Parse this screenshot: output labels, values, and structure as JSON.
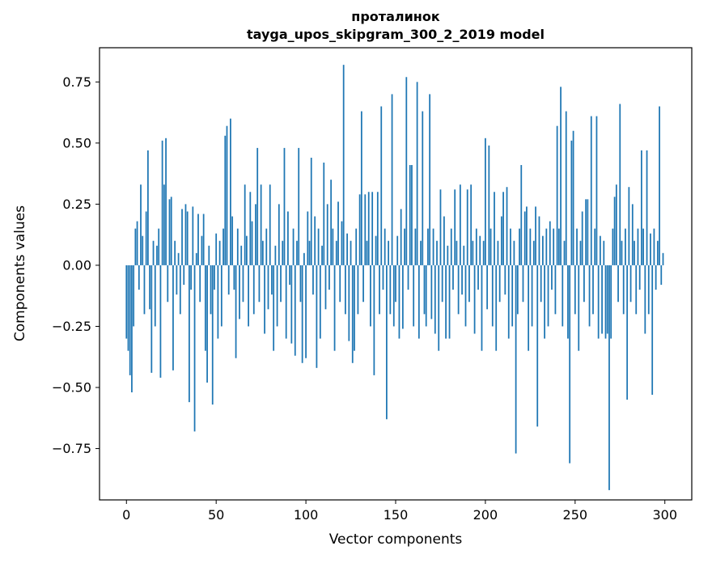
{
  "figure": {
    "background": "#ffffff"
  },
  "chart_data": {
    "type": "bar",
    "title_line1": "проталинок",
    "title_line2": "tayga_upos_skipgram_300_2_2019 model",
    "xlabel": "Vector components",
    "ylabel": "Components values",
    "bar_color": "#1f77b4",
    "axes_color": "#000000",
    "xlim": [
      -15,
      315
    ],
    "ylim": [
      -0.96,
      0.89
    ],
    "xticks": [
      0,
      50,
      100,
      150,
      200,
      250,
      300
    ],
    "yticks": [
      -0.75,
      -0.5,
      -0.25,
      0.0,
      0.25,
      0.5,
      0.75
    ],
    "grid": false,
    "legend": "none",
    "x_is_index": true,
    "n_components": 300,
    "values": [
      -0.3,
      -0.35,
      -0.45,
      -0.52,
      -0.25,
      0.15,
      0.18,
      -0.1,
      0.33,
      0.12,
      -0.2,
      0.22,
      0.47,
      -0.18,
      -0.44,
      0.1,
      -0.25,
      0.08,
      0.15,
      -0.46,
      0.51,
      0.33,
      0.52,
      -0.15,
      0.27,
      0.28,
      -0.43,
      0.1,
      -0.12,
      0.05,
      -0.2,
      0.23,
      -0.08,
      0.25,
      0.22,
      -0.56,
      -0.1,
      0.24,
      -0.68,
      0.05,
      0.21,
      -0.15,
      0.12,
      0.21,
      -0.35,
      -0.48,
      0.08,
      -0.2,
      -0.57,
      -0.1,
      0.13,
      -0.3,
      0.1,
      -0.25,
      0.15,
      0.53,
      0.57,
      -0.12,
      0.6,
      0.2,
      -0.1,
      -0.38,
      0.15,
      -0.22,
      0.08,
      -0.15,
      0.33,
      0.12,
      -0.25,
      0.3,
      0.18,
      -0.2,
      0.25,
      0.48,
      -0.15,
      0.33,
      0.1,
      -0.28,
      0.15,
      -0.18,
      0.33,
      -0.12,
      -0.35,
      0.08,
      -0.25,
      0.25,
      -0.15,
      0.1,
      0.48,
      -0.3,
      0.22,
      -0.08,
      -0.32,
      0.15,
      -0.37,
      0.1,
      0.48,
      -0.15,
      -0.4,
      0.05,
      -0.38,
      0.22,
      0.1,
      0.44,
      -0.12,
      0.2,
      -0.42,
      0.15,
      -0.3,
      0.08,
      0.42,
      -0.18,
      0.25,
      -0.1,
      0.35,
      0.15,
      -0.35,
      0.1,
      0.26,
      -0.15,
      0.18,
      0.82,
      -0.2,
      0.13,
      -0.31,
      0.1,
      -0.4,
      -0.35,
      0.15,
      -0.2,
      0.29,
      0.63,
      -0.15,
      0.29,
      0.1,
      0.3,
      -0.25,
      0.3,
      -0.45,
      0.12,
      0.3,
      -0.2,
      0.65,
      -0.1,
      0.15,
      -0.63,
      0.1,
      -0.2,
      0.7,
      -0.25,
      -0.15,
      0.12,
      -0.3,
      0.23,
      -0.26,
      0.15,
      0.77,
      -0.1,
      0.41,
      0.41,
      -0.25,
      0.15,
      0.75,
      -0.3,
      0.1,
      0.63,
      -0.2,
      -0.25,
      0.15,
      0.7,
      -0.22,
      0.15,
      -0.28,
      0.1,
      -0.35,
      0.31,
      -0.15,
      0.2,
      -0.3,
      0.08,
      -0.3,
      0.15,
      -0.1,
      0.31,
      0.1,
      -0.2,
      0.33,
      -0.12,
      0.08,
      -0.25,
      0.31,
      -0.15,
      0.33,
      0.1,
      -0.28,
      0.15,
      -0.1,
      0.12,
      -0.35,
      0.1,
      0.52,
      -0.18,
      0.49,
      0.15,
      -0.25,
      0.3,
      -0.35,
      0.1,
      -0.15,
      0.2,
      0.3,
      -0.12,
      0.32,
      -0.3,
      0.15,
      -0.25,
      0.1,
      -0.77,
      -0.2,
      0.15,
      0.41,
      -0.15,
      0.22,
      0.24,
      -0.35,
      0.15,
      -0.25,
      0.1,
      0.24,
      -0.66,
      0.2,
      -0.15,
      0.12,
      -0.3,
      0.15,
      -0.25,
      0.18,
      -0.1,
      0.15,
      -0.2,
      0.57,
      0.15,
      0.73,
      -0.25,
      0.1,
      0.63,
      -0.3,
      -0.81,
      0.51,
      0.55,
      -0.2,
      0.15,
      -0.35,
      0.1,
      0.22,
      -0.15,
      0.27,
      0.27,
      -0.25,
      0.61,
      -0.2,
      0.15,
      0.61,
      -0.3,
      0.12,
      -0.28,
      0.1,
      -0.3,
      -0.28,
      -0.92,
      -0.3,
      0.15,
      0.28,
      0.33,
      -0.15,
      0.66,
      0.1,
      -0.2,
      0.15,
      -0.55,
      0.32,
      -0.15,
      0.25,
      0.1,
      -0.2,
      0.15,
      -0.1,
      0.47,
      0.15,
      -0.28,
      0.47,
      -0.2,
      0.13,
      -0.53,
      0.15,
      -0.1,
      0.1,
      0.65,
      -0.08,
      0.05
    ]
  }
}
